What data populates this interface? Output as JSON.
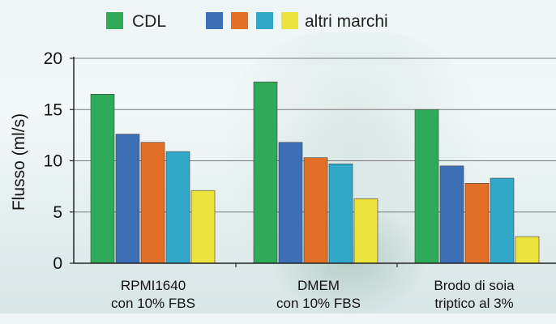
{
  "chart_data": {
    "type": "bar",
    "ylabel": "Flusso (ml/s)",
    "ylim": [
      0,
      20
    ],
    "yticks": [
      0,
      5,
      10,
      15,
      20
    ],
    "grid": true,
    "legend": {
      "placement": "top",
      "cdl_label": "CDL",
      "others_label": "altri marchi"
    },
    "categories": [
      [
        "RPMI1640",
        "con 10% FBS"
      ],
      [
        "DMEM",
        "con 10% FBS"
      ],
      [
        "Brodo di soia",
        "triptico al 3%"
      ]
    ],
    "series": [
      {
        "color": "#2eaa58",
        "values": [
          16.5,
          17.7,
          15.0
        ]
      },
      {
        "color": "#3d6fb6",
        "values": [
          12.6,
          11.8,
          9.5
        ]
      },
      {
        "color": "#e36e25",
        "values": [
          11.8,
          10.3,
          7.8
        ]
      },
      {
        "color": "#31a8c8",
        "values": [
          10.9,
          9.7,
          8.3
        ]
      },
      {
        "color": "#ece33c",
        "values": [
          7.1,
          6.3,
          2.6
        ]
      }
    ]
  }
}
